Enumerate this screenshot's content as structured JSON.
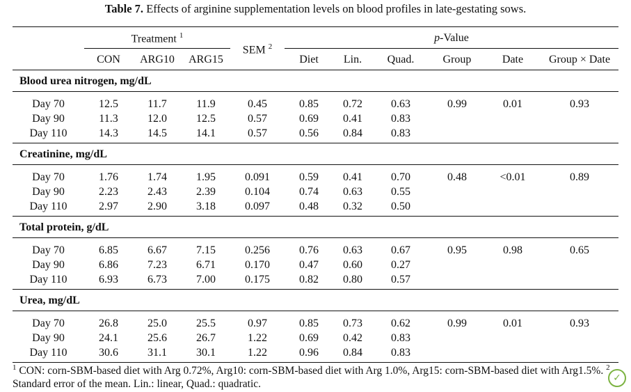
{
  "caption": {
    "label": "Table 7.",
    "text": "Effects of arginine supplementation levels on blood profiles in late-gestating sows."
  },
  "header": {
    "treatment": "Treatment",
    "treatment_note": "1",
    "sem": "SEM",
    "sem_note": "2",
    "p_italic": "p",
    "p_rest": "-Value",
    "columns": [
      "CON",
      "ARG10",
      "ARG15",
      "Diet",
      "Lin.",
      "Quad.",
      "Group",
      "Date",
      "Group × Date"
    ]
  },
  "sections": [
    {
      "title": "Blood urea nitrogen, mg/dL",
      "rows": [
        [
          "Day 70",
          "12.5",
          "11.7",
          "11.9",
          "0.45",
          "0.85",
          "0.72",
          "0.63",
          "0.99",
          "0.01",
          "0.93"
        ],
        [
          "Day 90",
          "11.3",
          "12.0",
          "12.5",
          "0.57",
          "0.69",
          "0.41",
          "0.83",
          "",
          "",
          ""
        ],
        [
          "Day 110",
          "14.3",
          "14.5",
          "14.1",
          "0.57",
          "0.56",
          "0.84",
          "0.83",
          "",
          "",
          ""
        ]
      ]
    },
    {
      "title": "Creatinine, mg/dL",
      "rows": [
        [
          "Day 70",
          "1.76",
          "1.74",
          "1.95",
          "0.091",
          "0.59",
          "0.41",
          "0.70",
          "0.48",
          "<0.01",
          "0.89"
        ],
        [
          "Day 90",
          "2.23",
          "2.43",
          "2.39",
          "0.104",
          "0.74",
          "0.63",
          "0.55",
          "",
          "",
          ""
        ],
        [
          "Day 110",
          "2.97",
          "2.90",
          "3.18",
          "0.097",
          "0.48",
          "0.32",
          "0.50",
          "",
          "",
          ""
        ]
      ]
    },
    {
      "title": "Total protein, g/dL",
      "rows": [
        [
          "Day 70",
          "6.85",
          "6.67",
          "7.15",
          "0.256",
          "0.76",
          "0.63",
          "0.67",
          "0.95",
          "0.98",
          "0.65"
        ],
        [
          "Day 90",
          "6.86",
          "7.23",
          "6.71",
          "0.170",
          "0.47",
          "0.60",
          "0.27",
          "",
          "",
          ""
        ],
        [
          "Day 110",
          "6.93",
          "6.73",
          "7.00",
          "0.175",
          "0.82",
          "0.80",
          "0.57",
          "",
          "",
          ""
        ]
      ]
    },
    {
      "title": "Urea, mg/dL",
      "rows": [
        [
          "Day 70",
          "26.8",
          "25.0",
          "25.5",
          "0.97",
          "0.85",
          "0.73",
          "0.62",
          "0.99",
          "0.01",
          "0.93"
        ],
        [
          "Day 90",
          "24.1",
          "25.6",
          "26.7",
          "1.22",
          "0.69",
          "0.42",
          "0.83",
          "",
          "",
          ""
        ],
        [
          "Day 110",
          "30.6",
          "31.1",
          "30.1",
          "1.22",
          "0.96",
          "0.84",
          "0.83",
          "",
          "",
          ""
        ]
      ]
    }
  ],
  "footnote": {
    "n1": "1",
    "t1": " CON: corn-SBM-based diet with Arg 0.72%, Arg10: corn-SBM-based diet with Arg 1.0%, Arg15: corn-SBM-based diet with Arg1.5%.",
    "n2": "2",
    "t2": " Standard error of the mean. Lin.: linear, Quad.: quadratic."
  },
  "badge_icon": "mdpi-leaf-icon"
}
